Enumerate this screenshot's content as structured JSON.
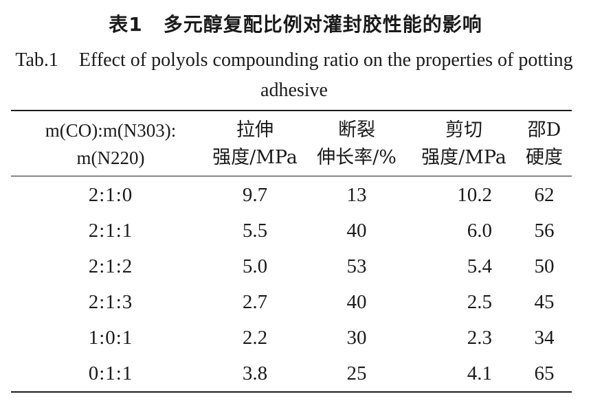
{
  "title_cn": {
    "label": "表1",
    "text": "多元醇复配比例对灌封胶性能的影响"
  },
  "title_en": {
    "label": "Tab.1",
    "text": "Effect of polyols compounding ratio on the properties of potting adhesive"
  },
  "table": {
    "headers": [
      [
        "m(CO):m(N303):",
        "m(N220)"
      ],
      [
        "拉伸",
        "强度/MPa"
      ],
      [
        "断裂",
        "伸长率/%"
      ],
      [
        "剪切",
        "强度/MPa"
      ],
      [
        "邵D",
        "硬度"
      ]
    ],
    "rows": [
      [
        "2:1:0",
        "9.7",
        "13",
        "10.2",
        "62"
      ],
      [
        "2:1:1",
        "5.5",
        "40",
        "6.0",
        "56"
      ],
      [
        "2:1:2",
        "5.0",
        "53",
        "5.4",
        "50"
      ],
      [
        "2:1:3",
        "2.7",
        "40",
        "2.5",
        "45"
      ],
      [
        "1:0:1",
        "2.2",
        "30",
        "2.3",
        "34"
      ],
      [
        "0:1:1",
        "3.8",
        "25",
        "4.1",
        "65"
      ]
    ]
  }
}
